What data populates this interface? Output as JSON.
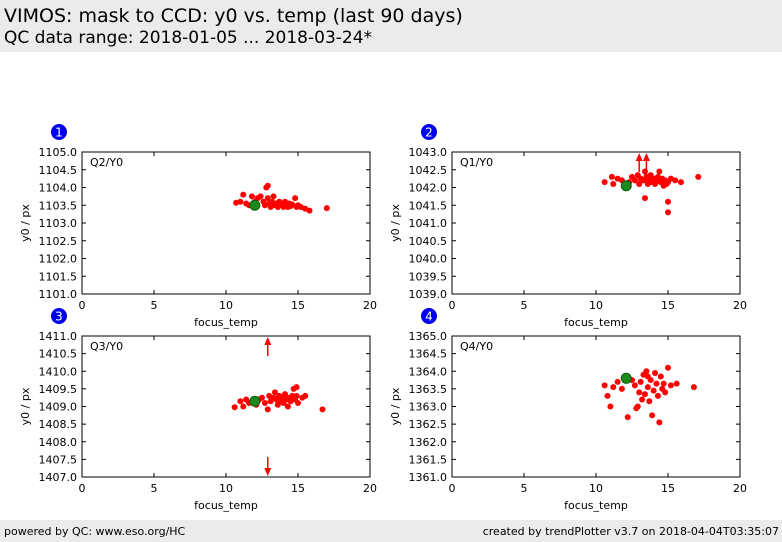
{
  "header": {
    "title": "VIMOS: mask to CCD: y0 vs. temp (last 90 days)",
    "subtitle": "QC data range: 2018-01-05 ... 2018-03-24*"
  },
  "footer": {
    "left": "powered by QC: www.eso.org/HC",
    "right": "created by trendPlotter v3.7 on 2018-04-04T03:35:07"
  },
  "colors": {
    "data": "#ff0000",
    "reference": "#1a8a1a",
    "badge": "#0000ee"
  },
  "chart_data": [
    {
      "type": "scatter",
      "badge": "1",
      "label": "Q2/Y0",
      "xlabel": "focus_temp",
      "ylabel": "y0 / px",
      "xlim": [
        0,
        20
      ],
      "ylim": [
        1101.0,
        1105.0
      ],
      "xticks": [
        "0",
        "5",
        "10",
        "15",
        "20"
      ],
      "yticks": [
        "1101.0",
        "1101.5",
        "1102.0",
        "1102.5",
        "1103.0",
        "1103.5",
        "1104.0",
        "1104.5",
        "1105.0"
      ],
      "grid": false,
      "points": [
        [
          10.7,
          1103.57
        ],
        [
          11.0,
          1103.6
        ],
        [
          11.2,
          1103.8
        ],
        [
          11.4,
          1103.55
        ],
        [
          11.6,
          1103.5
        ],
        [
          11.8,
          1103.75
        ],
        [
          12.0,
          1103.6
        ],
        [
          12.2,
          1103.7
        ],
        [
          12.4,
          1103.75
        ],
        [
          12.6,
          1103.6
        ],
        [
          12.7,
          1103.5
        ],
        [
          12.8,
          1104.0
        ],
        [
          12.9,
          1104.05
        ],
        [
          12.9,
          1103.7
        ],
        [
          13.0,
          1103.55
        ],
        [
          13.1,
          1103.45
        ],
        [
          13.2,
          1103.6
        ],
        [
          13.3,
          1103.75
        ],
        [
          13.4,
          1103.5
        ],
        [
          13.5,
          1103.55
        ],
        [
          13.6,
          1103.45
        ],
        [
          13.7,
          1103.6
        ],
        [
          13.8,
          1103.5
        ],
        [
          13.9,
          1103.55
        ],
        [
          14.0,
          1103.45
        ],
        [
          14.1,
          1103.6
        ],
        [
          14.2,
          1103.5
        ],
        [
          14.3,
          1103.45
        ],
        [
          14.4,
          1103.55
        ],
        [
          14.5,
          1103.48
        ],
        [
          14.6,
          1103.52
        ],
        [
          14.8,
          1103.7
        ],
        [
          14.9,
          1103.45
        ],
        [
          15.0,
          1103.5
        ],
        [
          15.2,
          1103.45
        ],
        [
          15.5,
          1103.4
        ],
        [
          15.8,
          1103.35
        ],
        [
          17.0,
          1103.42
        ]
      ],
      "reference": [
        12.0,
        1103.5
      ],
      "outliers": []
    },
    {
      "type": "scatter",
      "badge": "2",
      "label": "Q1/Y0",
      "xlabel": "focus_temp",
      "ylabel": "y0 / px",
      "xlim": [
        0,
        20
      ],
      "ylim": [
        1039.0,
        1043.0
      ],
      "xticks": [
        "0",
        "5",
        "10",
        "15",
        "20"
      ],
      "yticks": [
        "1039.0",
        "1039.5",
        "1040.0",
        "1040.5",
        "1041.0",
        "1041.5",
        "1042.0",
        "1042.5",
        "1043.0"
      ],
      "grid": false,
      "points": [
        [
          10.6,
          1042.15
        ],
        [
          11.1,
          1042.3
        ],
        [
          11.2,
          1042.1
        ],
        [
          11.5,
          1042.25
        ],
        [
          11.8,
          1042.2
        ],
        [
          12.0,
          1042.05
        ],
        [
          12.3,
          1042.15
        ],
        [
          12.5,
          1042.3
        ],
        [
          12.7,
          1042.2
        ],
        [
          12.9,
          1042.35
        ],
        [
          13.0,
          1042.1
        ],
        [
          13.1,
          1042.25
        ],
        [
          13.3,
          1042.2
        ],
        [
          13.4,
          1042.45
        ],
        [
          13.5,
          1042.3
        ],
        [
          13.6,
          1042.1
        ],
        [
          13.7,
          1042.2
        ],
        [
          13.8,
          1042.35
        ],
        [
          13.9,
          1042.15
        ],
        [
          14.0,
          1042.25
        ],
        [
          14.1,
          1042.1
        ],
        [
          14.2,
          1042.2
        ],
        [
          14.3,
          1042.3
        ],
        [
          14.4,
          1042.45
        ],
        [
          14.5,
          1042.15
        ],
        [
          14.6,
          1042.25
        ],
        [
          14.7,
          1042.05
        ],
        [
          14.8,
          1042.2
        ],
        [
          14.9,
          1042.1
        ],
        [
          15.0,
          1042.15
        ],
        [
          15.2,
          1042.25
        ],
        [
          15.5,
          1042.2
        ],
        [
          15.9,
          1042.15
        ],
        [
          17.1,
          1042.3
        ],
        [
          13.4,
          1041.7
        ],
        [
          15.0,
          1041.3
        ],
        [
          15.0,
          1041.6
        ]
      ],
      "reference": [
        12.1,
        1042.05
      ],
      "outliers": [
        [
          13.0,
          "up"
        ],
        [
          13.5,
          "up"
        ]
      ]
    },
    {
      "type": "scatter",
      "badge": "3",
      "label": "Q3/Y0",
      "xlabel": "focus_temp",
      "ylabel": "y0 / px",
      "xlim": [
        0,
        20
      ],
      "ylim": [
        1407.0,
        1411.0
      ],
      "xticks": [
        "0",
        "5",
        "10",
        "15",
        "20"
      ],
      "yticks": [
        "1407.0",
        "1407.5",
        "1408.0",
        "1408.5",
        "1409.0",
        "1409.5",
        "1410.0",
        "1410.5",
        "1411.0"
      ],
      "grid": false,
      "points": [
        [
          10.6,
          1408.98
        ],
        [
          11.0,
          1409.15
        ],
        [
          11.2,
          1409.0
        ],
        [
          11.4,
          1409.2
        ],
        [
          11.6,
          1409.1
        ],
        [
          11.9,
          1409.15
        ],
        [
          12.1,
          1409.05
        ],
        [
          12.3,
          1409.2
        ],
        [
          12.5,
          1409.25
        ],
        [
          12.7,
          1409.1
        ],
        [
          12.9,
          1408.92
        ],
        [
          13.0,
          1409.3
        ],
        [
          13.1,
          1409.15
        ],
        [
          13.3,
          1409.25
        ],
        [
          13.4,
          1409.4
        ],
        [
          13.5,
          1409.2
        ],
        [
          13.6,
          1409.05
        ],
        [
          13.7,
          1409.3
        ],
        [
          13.8,
          1409.15
        ],
        [
          13.9,
          1409.25
        ],
        [
          14.0,
          1409.1
        ],
        [
          14.1,
          1409.35
        ],
        [
          14.2,
          1409.2
        ],
        [
          14.3,
          1409.0
        ],
        [
          14.4,
          1409.25
        ],
        [
          14.5,
          1409.15
        ],
        [
          14.6,
          1409.3
        ],
        [
          14.7,
          1409.5
        ],
        [
          14.8,
          1409.2
        ],
        [
          14.9,
          1409.3
        ],
        [
          15.0,
          1409.1
        ],
        [
          15.3,
          1409.25
        ],
        [
          15.5,
          1409.3
        ],
        [
          16.7,
          1408.92
        ],
        [
          14.9,
          1409.55
        ]
      ],
      "reference": [
        12.0,
        1409.15
      ],
      "outliers": [
        [
          12.9,
          "up"
        ],
        [
          12.9,
          "down"
        ]
      ]
    },
    {
      "type": "scatter",
      "badge": "4",
      "label": "Q4/Y0",
      "xlabel": "focus_temp",
      "ylabel": "y0 / px",
      "xlim": [
        0,
        20
      ],
      "ylim": [
        1361.0,
        1365.0
      ],
      "xticks": [
        "0",
        "5",
        "10",
        "15",
        "20"
      ],
      "yticks": [
        "1361.0",
        "1361.5",
        "1362.0",
        "1362.5",
        "1363.0",
        "1363.5",
        "1364.0",
        "1364.5",
        "1365.0"
      ],
      "grid": false,
      "points": [
        [
          10.6,
          1363.6
        ],
        [
          10.8,
          1363.3
        ],
        [
          11.0,
          1363.0
        ],
        [
          11.2,
          1363.55
        ],
        [
          11.5,
          1363.7
        ],
        [
          11.8,
          1363.5
        ],
        [
          12.0,
          1363.85
        ],
        [
          12.2,
          1362.7
        ],
        [
          12.5,
          1363.75
        ],
        [
          12.7,
          1363.6
        ],
        [
          12.9,
          1363.0
        ],
        [
          13.0,
          1363.4
        ],
        [
          13.1,
          1363.7
        ],
        [
          13.2,
          1363.2
        ],
        [
          13.3,
          1363.9
        ],
        [
          13.4,
          1363.35
        ],
        [
          13.5,
          1364.0
        ],
        [
          13.6,
          1363.55
        ],
        [
          13.7,
          1363.15
        ],
        [
          13.8,
          1363.75
        ],
        [
          13.9,
          1362.75
        ],
        [
          14.0,
          1363.45
        ],
        [
          14.1,
          1363.95
        ],
        [
          14.2,
          1363.65
        ],
        [
          14.3,
          1363.3
        ],
        [
          14.4,
          1362.55
        ],
        [
          14.5,
          1363.85
        ],
        [
          14.6,
          1363.5
        ],
        [
          14.7,
          1363.65
        ],
        [
          14.8,
          1363.4
        ],
        [
          15.0,
          1364.1
        ],
        [
          15.2,
          1363.6
        ],
        [
          15.6,
          1363.65
        ],
        [
          16.8,
          1363.55
        ],
        [
          12.8,
          1362.95
        ],
        [
          13.6,
          1363.85
        ]
      ],
      "reference": [
        12.1,
        1363.8
      ],
      "outliers": []
    }
  ]
}
